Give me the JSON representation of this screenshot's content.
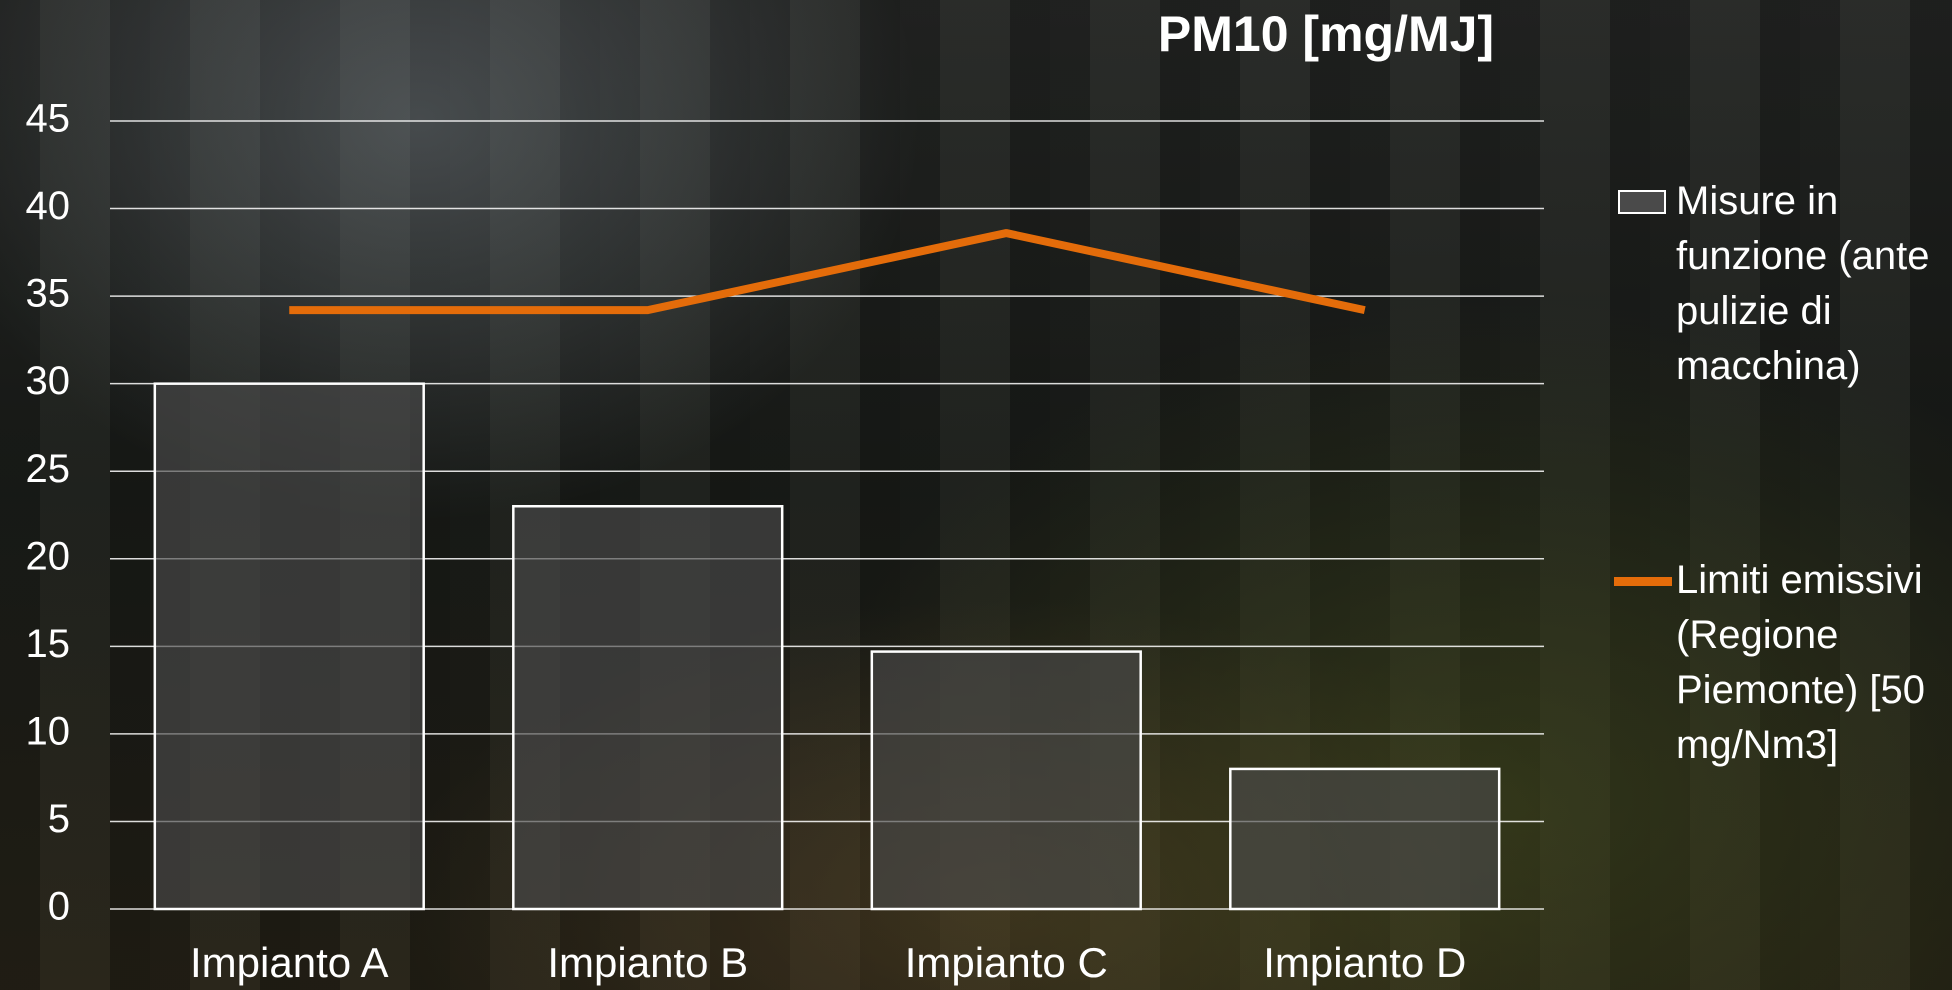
{
  "chart_data": {
    "type": "bar",
    "title": "PM10 [mg/MJ]",
    "categories": [
      "Impianto A",
      "Impianto B",
      "Impianto C",
      "Impianto D"
    ],
    "series": [
      {
        "name": "Misure in funzione (ante pulizie di macchina)",
        "type": "bar",
        "color": "#4a4a4a",
        "values": [
          30,
          23,
          14.7,
          8
        ]
      },
      {
        "name": "Limiti emissivi (Regione Piemonte) [50 mg/Nm3]",
        "type": "line",
        "color": "#e46c0a",
        "values": [
          34.2,
          34.2,
          38.6,
          34.2
        ]
      }
    ],
    "ylim": [
      0,
      45
    ],
    "yticks": [
      0,
      5,
      10,
      15,
      20,
      25,
      30,
      35,
      40,
      45
    ],
    "grid": true
  }
}
